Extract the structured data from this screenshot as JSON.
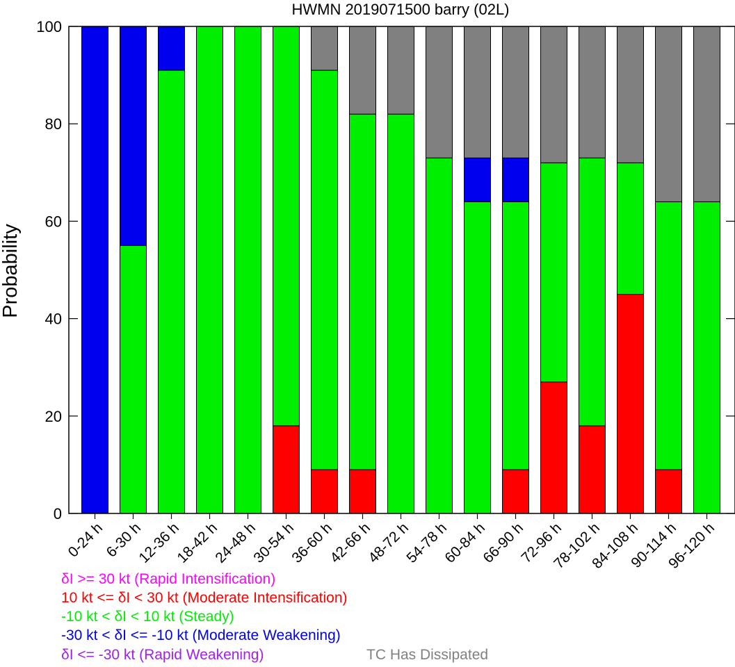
{
  "chart_data": {
    "type": "bar",
    "stacked": true,
    "title": "HWMN 2019071500 barry (02L)",
    "ylabel": "Probability",
    "xlabel": "",
    "ylim": [
      0,
      100
    ],
    "yticks": [
      "0",
      "20",
      "40",
      "60",
      "80",
      "100"
    ],
    "categories": [
      "0-24 h",
      "6-30 h",
      "12-36 h",
      "18-42 h",
      "24-48 h",
      "30-54 h",
      "36-60 h",
      "42-66 h",
      "48-72 h",
      "54-78 h",
      "60-84 h",
      "66-90 h",
      "72-96 h",
      "78-102 h",
      "84-108 h",
      "90-114 h",
      "96-120 h"
    ],
    "series": [
      {
        "name": "δI >= 30 kt (Rapid Intensification)",
        "color": "#ff00ff",
        "values": [
          0,
          0,
          0,
          0,
          0,
          0,
          0,
          0,
          0,
          0,
          0,
          0,
          0,
          0,
          0,
          0,
          0
        ]
      },
      {
        "name": "10 kt <= δI < 30 kt (Moderate Intensification)",
        "color": "#ff0000",
        "values": [
          0,
          0,
          0,
          0,
          0,
          18,
          9,
          9,
          0,
          0,
          0,
          9,
          27,
          18,
          45,
          9,
          0
        ]
      },
      {
        "name": "-10 kt < δI < 10 kt (Steady)",
        "color": "#00ee00",
        "values": [
          0,
          55,
          91,
          100,
          100,
          82,
          82,
          73,
          82,
          73,
          64,
          55,
          45,
          55,
          27,
          55,
          64
        ]
      },
      {
        "name": "-30 kt < δI <= -10 kt (Moderate Weakening)",
        "color": "#0000ee",
        "values": [
          100,
          45,
          9,
          0,
          0,
          0,
          0,
          0,
          0,
          0,
          9,
          9,
          0,
          0,
          0,
          0,
          0
        ]
      },
      {
        "name": "δI <= -30 kt (Rapid Weakening)",
        "color": "#a020f0",
        "values": [
          0,
          0,
          0,
          0,
          0,
          0,
          0,
          0,
          0,
          0,
          0,
          0,
          0,
          0,
          0,
          0,
          0
        ]
      },
      {
        "name": "TC Has Dissipated",
        "color": "#808080",
        "values": [
          0,
          0,
          0,
          0,
          0,
          0,
          9,
          18,
          18,
          27,
          27,
          27,
          28,
          27,
          28,
          36,
          36
        ]
      }
    ],
    "grid": false,
    "legend_position": "bottom"
  }
}
